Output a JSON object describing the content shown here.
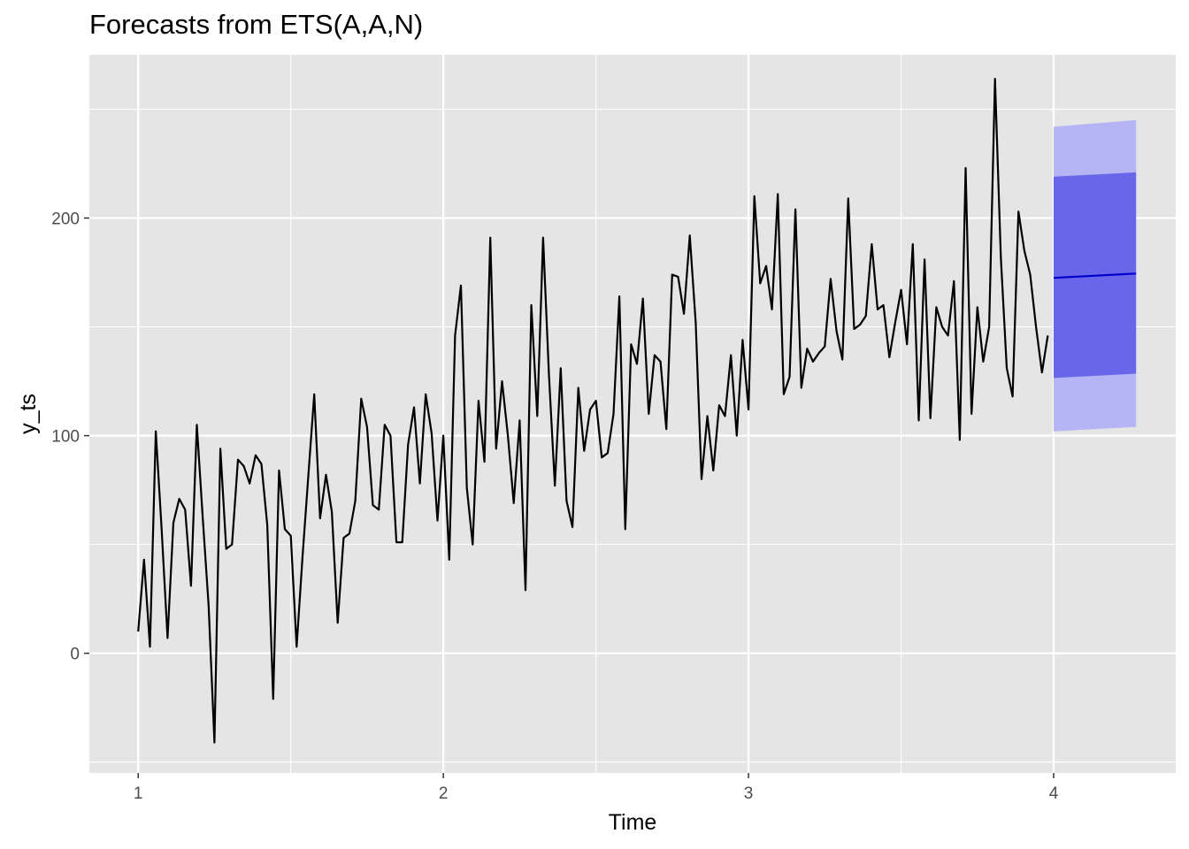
{
  "chart_data": {
    "type": "line",
    "title": "Forecasts from ETS(A,A,N)",
    "xlabel": "Time",
    "ylabel": "y_ts",
    "xlim": [
      0.84,
      4.4
    ],
    "ylim": [
      -55,
      275
    ],
    "x_ticks": [
      1,
      2,
      3,
      4
    ],
    "x_tick_labels": [
      "1",
      "2",
      "3",
      "4"
    ],
    "y_ticks": [
      0,
      100,
      200
    ],
    "y_tick_labels": [
      "0",
      "100",
      "200"
    ],
    "grid": true,
    "legend": "none",
    "colors": {
      "panel": "#e5e5e5",
      "grid": "#ffffff",
      "series": "#000000",
      "forecast_mean": "#0000cc",
      "interval_95": "#b5b5f5",
      "interval_80": "#6a66ea",
      "tick_text": "#4d4d4d",
      "tick_mark": "#333333"
    },
    "series": [
      {
        "start": 1,
        "frequency": 52,
        "values": [
          10,
          43,
          3,
          102,
          57,
          7,
          60,
          71,
          66,
          31,
          105,
          62,
          22,
          -41,
          94,
          48,
          50,
          89,
          86,
          78,
          91,
          87,
          59,
          -21,
          84,
          57,
          54,
          3,
          44,
          82,
          119,
          62,
          82,
          65,
          14,
          53,
          55,
          70,
          117,
          104,
          68,
          66,
          105,
          100,
          51,
          51,
          96,
          113,
          78,
          119,
          101,
          61,
          100,
          43,
          146,
          169,
          76,
          50,
          116,
          88,
          191,
          94,
          125,
          100,
          69,
          107,
          29,
          160,
          109,
          191,
          128,
          77,
          131,
          70,
          58,
          122,
          93,
          112,
          116,
          90,
          92,
          110,
          164,
          57,
          142,
          133,
          163,
          110,
          137,
          134,
          103,
          174,
          173,
          156,
          192,
          152,
          80,
          109,
          84,
          114,
          109,
          137,
          100,
          144,
          112,
          210,
          170,
          178,
          158,
          211,
          119,
          127,
          204,
          122,
          140,
          134,
          138,
          141,
          172,
          148,
          135,
          209,
          149,
          151,
          155,
          188,
          158,
          160,
          136,
          152,
          167,
          142,
          188,
          107,
          181,
          108,
          159,
          150,
          146,
          171,
          98,
          223,
          110,
          159,
          134,
          150,
          264,
          182,
          131,
          118,
          203,
          185,
          174,
          150,
          129,
          146
        ]
      }
    ],
    "forecast": {
      "start": 4,
      "end": 4.27,
      "mean": [
        172.5,
        174.5
      ],
      "lower_80": [
        126.5,
        128.5
      ],
      "upper_80": [
        219,
        221
      ],
      "lower_95": [
        102,
        104
      ],
      "upper_95": [
        242,
        245
      ]
    }
  }
}
